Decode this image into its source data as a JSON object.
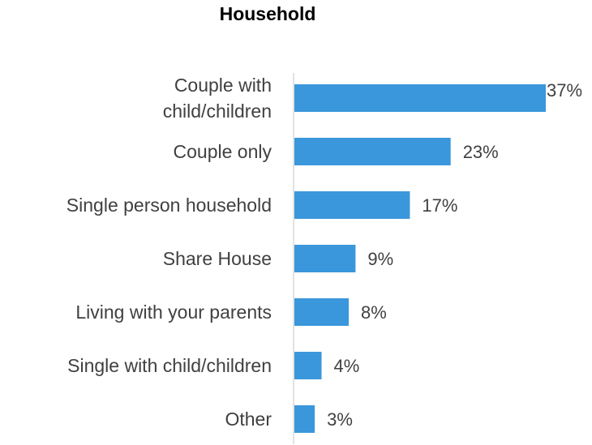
{
  "chart_data": {
    "type": "bar",
    "orientation": "horizontal",
    "title": "Household",
    "categories": [
      "Couple with child/children",
      "Couple only",
      "Single person household",
      "Share House",
      "Living with your parents",
      "Single with child/children",
      "Other"
    ],
    "values": [
      37,
      23,
      17,
      9,
      8,
      4,
      3
    ],
    "value_labels": [
      "37%",
      "23%",
      "17%",
      "9%",
      "8%",
      "4%",
      "3%"
    ],
    "xlabel": "",
    "ylabel": "",
    "xlim": [
      0,
      40
    ],
    "grid": false,
    "legend": "none"
  },
  "colors": {
    "bar": "#3A97DB",
    "axis": "#D9D9D9",
    "label": "#404040",
    "title": "#000000"
  }
}
